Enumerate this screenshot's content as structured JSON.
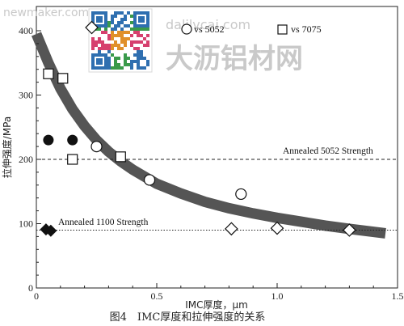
{
  "chart_data": {
    "type": "scatter",
    "xlabel": "IMC厚度，μm",
    "ylabel": "拉伸强度/MPa",
    "xlim": [
      0,
      1.5
    ],
    "ylim": [
      0,
      420
    ],
    "x_ticks": [
      0,
      0.5,
      1,
      1.5
    ],
    "x_tick_labels": [
      "0",
      "0.5",
      "1.0",
      "1.5"
    ],
    "y_ticks": [
      0,
      100,
      200,
      300,
      400
    ],
    "y_tick_labels": [
      "0",
      "100",
      "200",
      "300",
      "400"
    ],
    "grid": false,
    "legend_position": "top-right",
    "series": [
      {
        "name": "vs 5052",
        "marker": "circle-open",
        "x": [
          0.25,
          0.47,
          0.85
        ],
        "y": [
          220,
          168,
          146
        ]
      },
      {
        "name": "vs 7075",
        "marker": "square-open",
        "x": [
          0.05,
          0.11,
          0.15,
          0.35
        ],
        "y": [
          333,
          326,
          200,
          204
        ]
      },
      {
        "name": "",
        "marker": "circle-filled",
        "x": [
          0.05,
          0.15
        ],
        "y": [
          230,
          230
        ]
      },
      {
        "name": "",
        "marker": "diamond-open",
        "x": [
          0.23,
          0.81,
          1.0,
          1.3
        ],
        "y": [
          405,
          92,
          93,
          90
        ]
      },
      {
        "name": "",
        "marker": "diamond-filled",
        "x": [
          0.04,
          0.06
        ],
        "y": [
          91,
          89
        ]
      }
    ],
    "trend_band": {
      "x": [
        0.0,
        0.05,
        0.1,
        0.15,
        0.2,
        0.25,
        0.3,
        0.35,
        0.4,
        0.5,
        0.6,
        0.7,
        0.8,
        0.9,
        1.0,
        1.1,
        1.2,
        1.3,
        1.45
      ],
      "y": [
        395,
        350,
        310,
        278,
        252,
        230,
        212,
        197,
        184,
        162,
        147,
        134,
        124,
        116,
        109,
        103,
        97,
        92,
        85
      ]
    },
    "reference_lines": [
      {
        "label": "Annealed 5052 Strength",
        "y": 200,
        "style": "dashed"
      },
      {
        "label": "Annealed 1100 Strength",
        "y": 90,
        "style": "dotted"
      }
    ]
  },
  "caption": "图4　IMC厚度和拉伸强度的关系",
  "watermarks": {
    "site": "newmaker.com",
    "domain": "dalilvcai.com",
    "brand": "大沥铝材网"
  },
  "colors": {
    "band": "#555555",
    "axis": "#222222",
    "marker": "#111111",
    "caption": "#222222"
  }
}
